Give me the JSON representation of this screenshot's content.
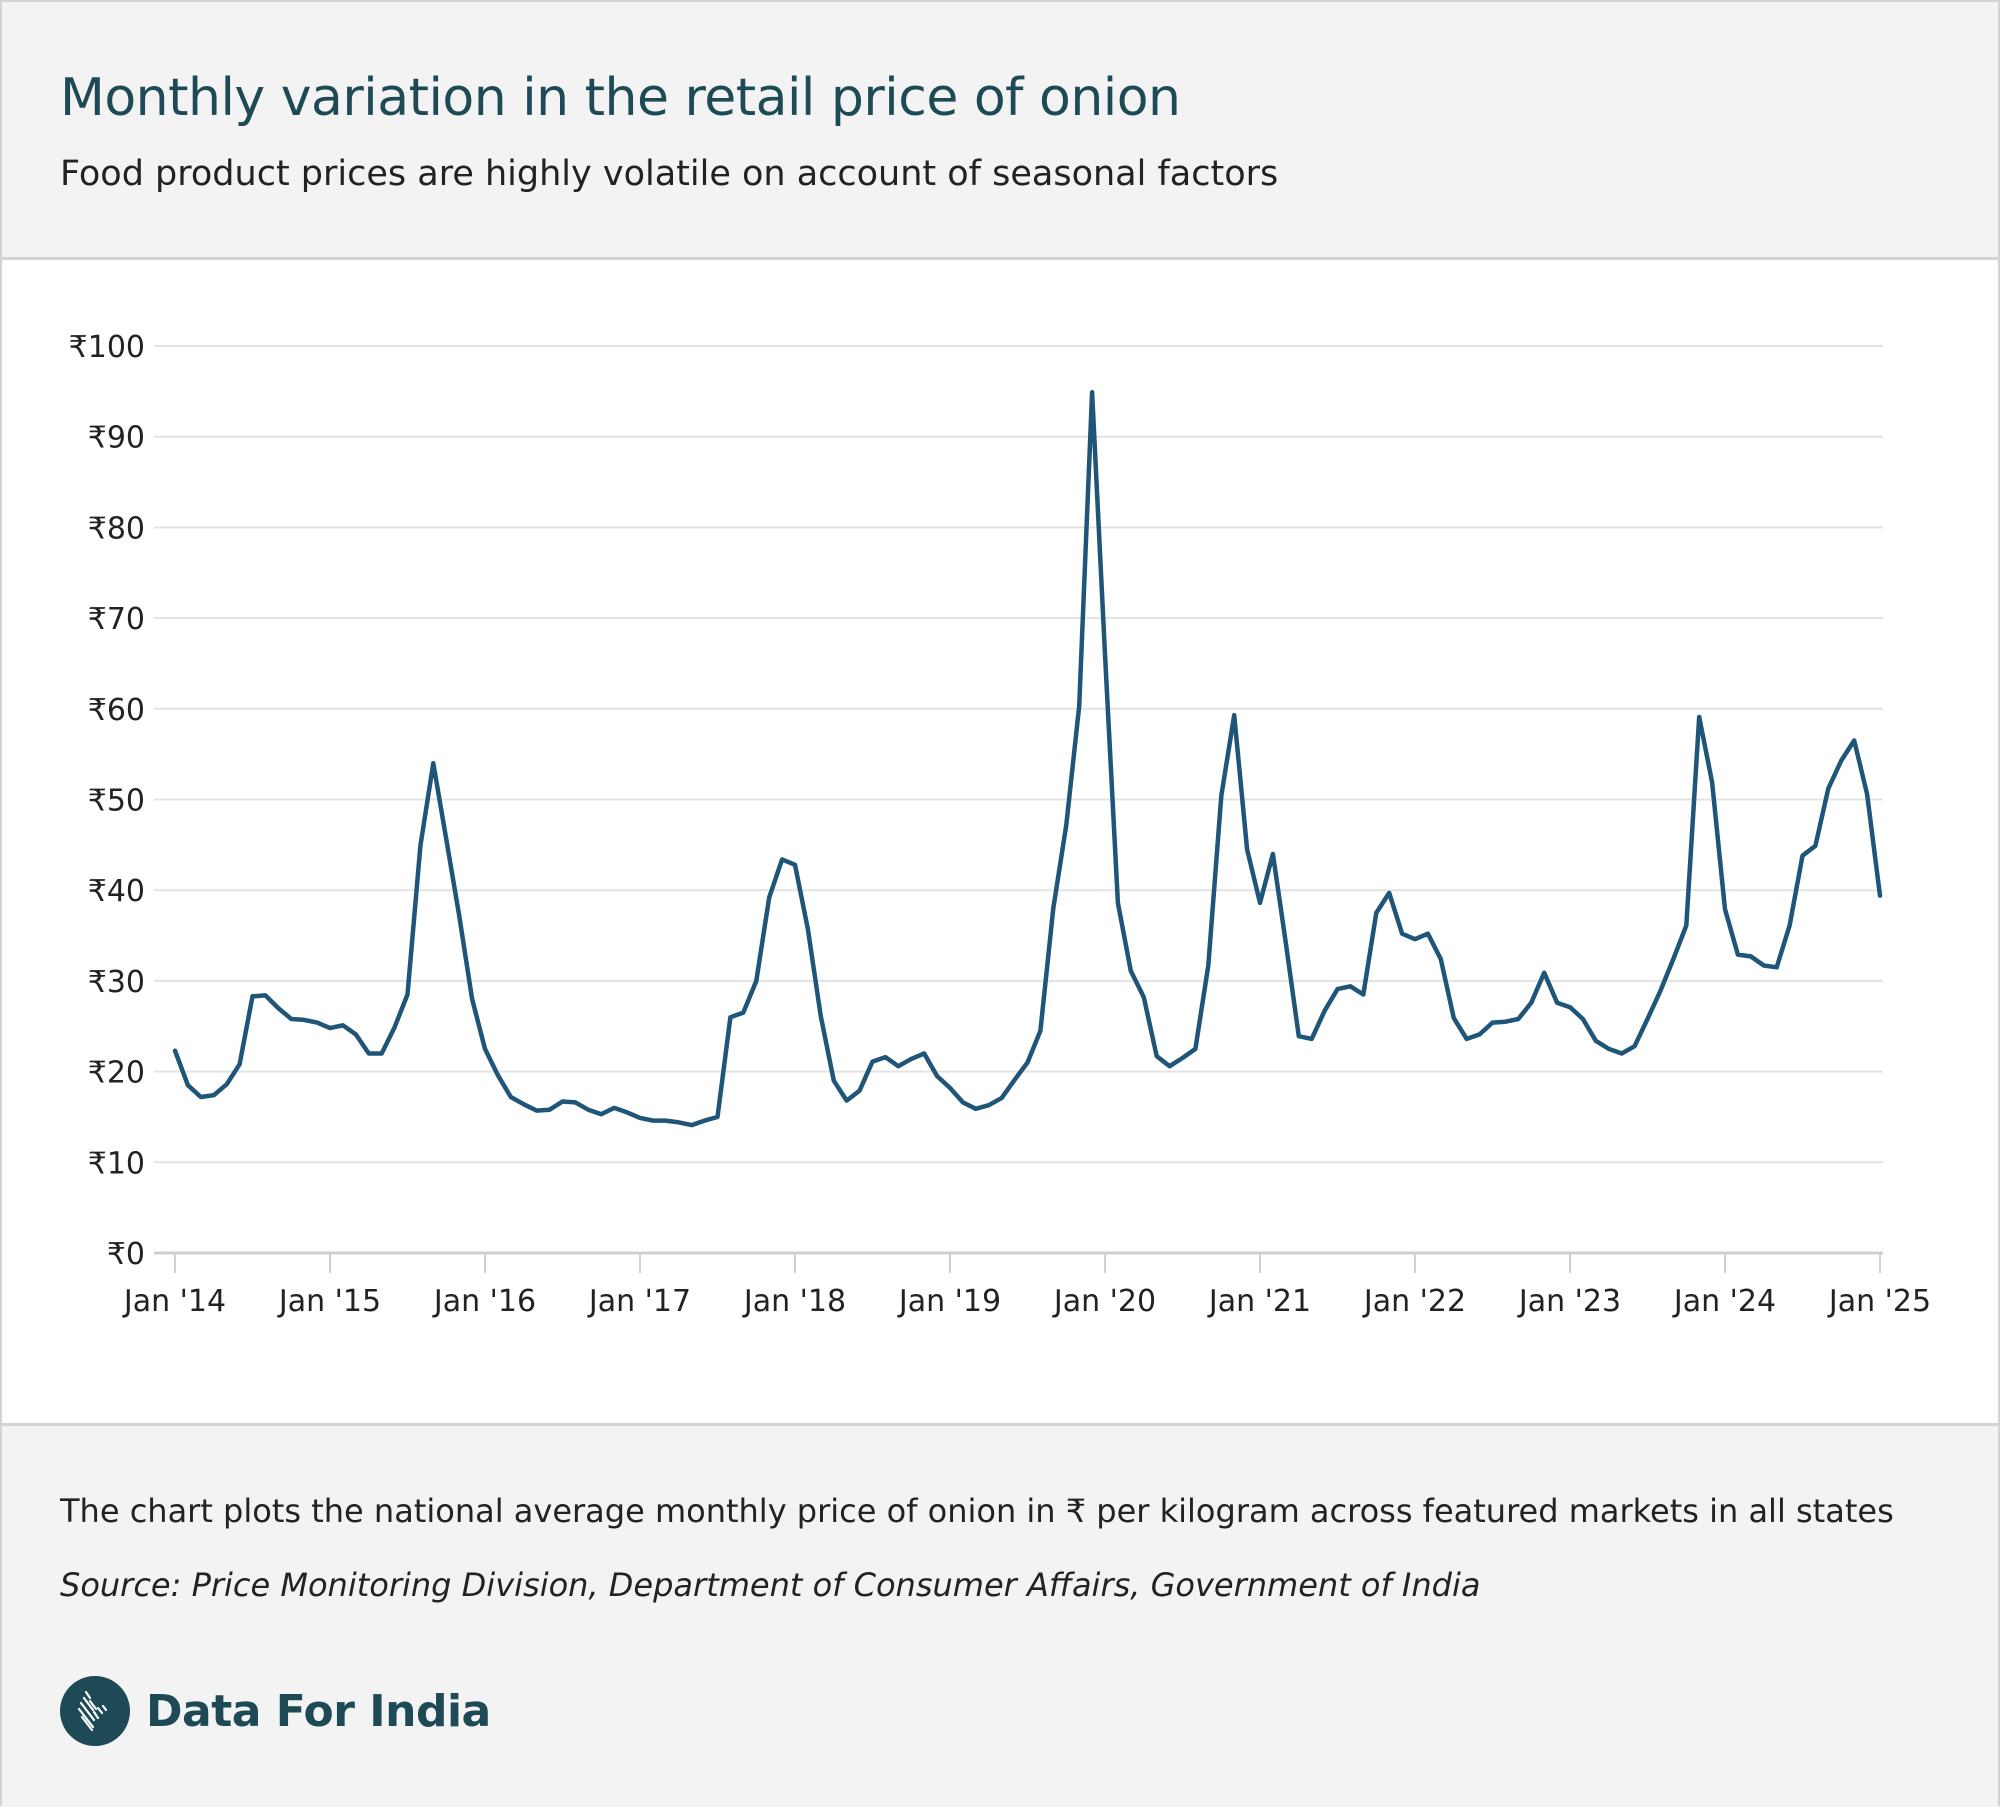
{
  "header": {
    "title": "Monthly variation in the retail price of onion",
    "subtitle": "Food product prices are highly volatile on account of seasonal factors"
  },
  "footer": {
    "note": "The chart plots the national average monthly price of onion in ₹ per kilogram across featured markets in all states",
    "source": "Source: Price Monitoring Division, Department of Consumer Affairs, Government of India",
    "brand": "Data For India",
    "logo_icon": "india-map-logo-icon"
  },
  "colors": {
    "line": "#1f5578",
    "title": "#1d4a55",
    "grid": "#e3e3e3",
    "axis": "#cfcfcf",
    "text": "#222222"
  },
  "chart_data": {
    "type": "line",
    "title": "Monthly variation in the retail price of onion",
    "xlabel": "",
    "ylabel": "",
    "y_prefix": "₹",
    "ylim": [
      0,
      100
    ],
    "yticks": [
      0,
      10,
      20,
      30,
      40,
      50,
      60,
      70,
      80,
      90,
      100
    ],
    "ytick_labels": [
      "₹0",
      "₹10",
      "₹20",
      "₹30",
      "₹40",
      "₹50",
      "₹60",
      "₹70",
      "₹80",
      "₹90",
      "₹100"
    ],
    "xrange": [
      "2014-01",
      "2025-01"
    ],
    "xtick_labels": [
      "Jan '14",
      "Jan '15",
      "Jan '16",
      "Jan '17",
      "Jan '18",
      "Jan '19",
      "Jan '20",
      "Jan '21",
      "Jan '22",
      "Jan '23",
      "Jan '24",
      "Jan '25"
    ],
    "grid": true,
    "legend": "none",
    "start": "2014-01",
    "frequency": "monthly",
    "series": [
      {
        "name": "Onion retail price (₹/kg)",
        "values": [
          22.3,
          18.5,
          17.2,
          17.4,
          18.6,
          20.8,
          28.3,
          28.4,
          27.0,
          25.8,
          25.7,
          25.4,
          24.8,
          25.1,
          24.1,
          22.0,
          22.0,
          24.9,
          28.5,
          44.9,
          54.0,
          45.6,
          37.2,
          28.0,
          22.5,
          19.6,
          17.2,
          16.4,
          15.7,
          15.8,
          16.7,
          16.6,
          15.8,
          15.3,
          16.0,
          15.5,
          14.9,
          14.6,
          14.6,
          14.4,
          14.1,
          14.6,
          15.0,
          26.0,
          26.5,
          30.0,
          39.2,
          43.4,
          42.8,
          35.7,
          26.1,
          19.0,
          16.8,
          17.9,
          21.1,
          21.6,
          20.6,
          21.4,
          22.0,
          19.5,
          18.2,
          16.6,
          15.9,
          16.3,
          17.1,
          19.1,
          21.0,
          24.5,
          38.0,
          47.2,
          60.3,
          94.9,
          66.0,
          38.6,
          31.1,
          28.2,
          21.7,
          20.6,
          21.5,
          22.5,
          31.7,
          50.4,
          59.3,
          44.5,
          38.6,
          44.0,
          34.2,
          23.9,
          23.6,
          26.7,
          29.1,
          29.4,
          28.5,
          37.5,
          39.7,
          35.2,
          34.6,
          35.2,
          32.4,
          25.9,
          23.6,
          24.1,
          25.4,
          25.5,
          25.8,
          27.6,
          30.9,
          27.6,
          27.1,
          25.8,
          23.4,
          22.5,
          22.0,
          22.8,
          25.8,
          28.9,
          32.4,
          36.1,
          59.1,
          51.9,
          37.9,
          32.9,
          32.7,
          31.7,
          31.5,
          36.1,
          43.8,
          44.9,
          51.2,
          54.3,
          56.5,
          50.6,
          39.4
        ]
      }
    ]
  }
}
